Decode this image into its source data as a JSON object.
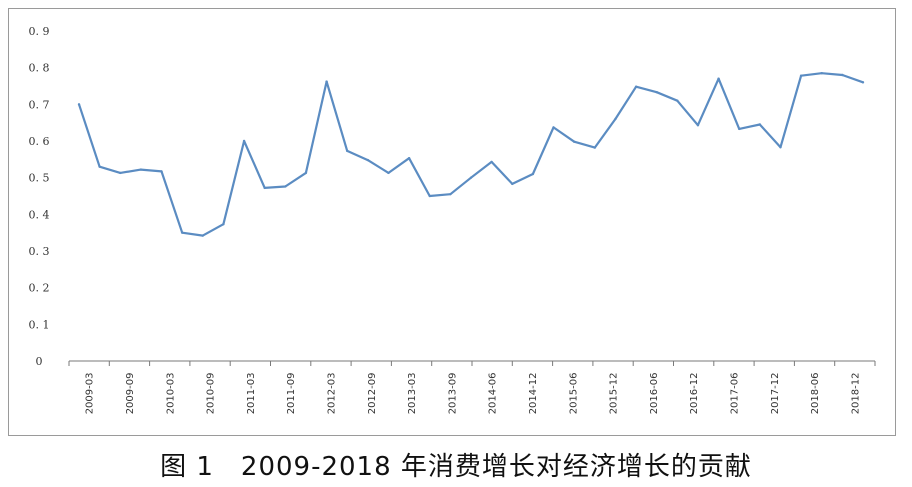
{
  "caption": "图 1　2009-2018 年消费增长对经济增长的贡献",
  "chart_data": {
    "type": "line",
    "title": "",
    "xlabel": "",
    "ylabel": "",
    "ylim": [
      0,
      0.9
    ],
    "yticks": [
      "0",
      "0. 1",
      "0. 2",
      "0. 3",
      "0. 4",
      "0. 5",
      "0. 6",
      "0. 7",
      "0. 8",
      "0. 9"
    ],
    "ytick_values": [
      0,
      0.1,
      0.2,
      0.3,
      0.4,
      0.5,
      0.6,
      0.7,
      0.8,
      0.9
    ],
    "grid": false,
    "legend": "none",
    "line_color": "#5b8cc2",
    "x_labels": [
      "2009-03",
      "2009-09",
      "2010-03",
      "2010-09",
      "2011-03",
      "2011-09",
      "2012-03",
      "2012-09",
      "2013-03",
      "2013-09",
      "2014-06",
      "2014-12",
      "2015-06",
      "2015-12",
      "2016-06",
      "2016-12",
      "2017-06",
      "2017-12",
      "2018-06",
      "2018-12"
    ],
    "values": [
      0.7,
      0.53,
      0.513,
      0.522,
      0.517,
      0.35,
      0.342,
      0.373,
      0.6,
      0.472,
      0.476,
      0.513,
      0.762,
      0.573,
      0.548,
      0.513,
      0.553,
      0.45,
      0.455,
      0.5,
      0.543,
      0.483,
      0.51,
      0.637,
      0.598,
      0.582,
      0.66,
      0.748,
      0.733,
      0.71,
      0.643,
      0.77,
      0.633,
      0.645,
      0.583,
      0.778,
      0.785,
      0.78,
      0.76
    ]
  }
}
